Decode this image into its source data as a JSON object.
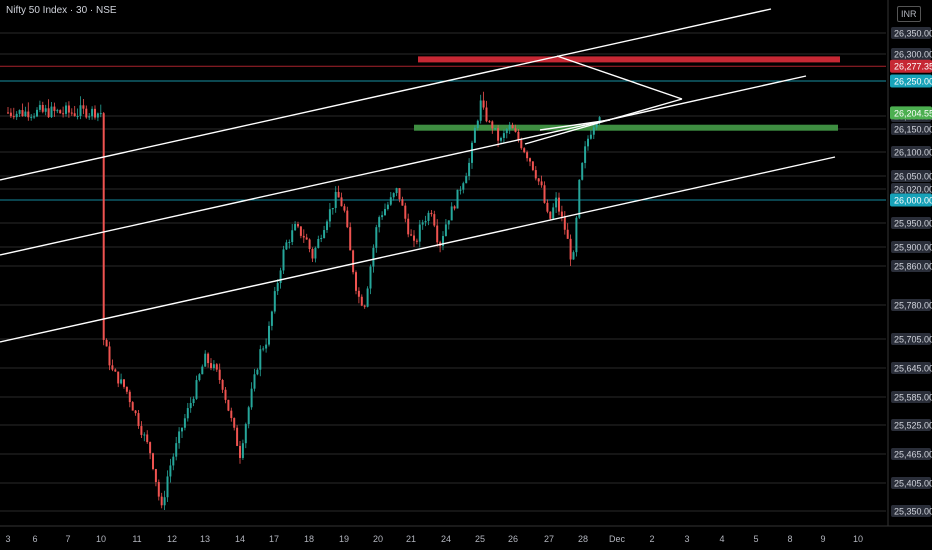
{
  "header": {
    "title": "Nifty 50 Index · 30 · NSE",
    "currency": "INR"
  },
  "colors": {
    "up": "#26a69a",
    "down": "#ef5350",
    "background": "#000000",
    "resistance": "#c62834",
    "support": "#3e8e41",
    "cyan": "#17a2b8",
    "lastPrice": "#4caf50"
  },
  "chart_data": {
    "type": "candlestick",
    "ylim": [
      25320,
      26400
    ],
    "y_ticks": [
      "26,350.00",
      "26,300.00",
      "26,250.00",
      "26,200.00",
      "26,150.00",
      "26,100.00",
      "26,050.00",
      "26,020.00",
      "25,950.00",
      "25,900.00",
      "25,860.00",
      "25,780.00",
      "25,705.00",
      "25,645.00",
      "25,585.00",
      "25,525.00",
      "25,465.00",
      "25,405.00",
      "25,350.00"
    ],
    "x_ticks": [
      "3",
      "6",
      "7",
      "10",
      "11",
      "12",
      "13",
      "14",
      "17",
      "18",
      "19",
      "20",
      "21",
      "24",
      "25",
      "26",
      "27",
      "28",
      "Dec",
      "2",
      "3",
      "4",
      "5",
      "8",
      "9",
      "10"
    ],
    "price_labels": [
      {
        "text": "26,277.35",
        "value": 26277.35,
        "color": "#c62834"
      },
      {
        "text": "26,250.00",
        "value": 26250,
        "color": "#17a2b8"
      },
      {
        "text": "26,204.55",
        "value": 26204.55,
        "color": "#4caf50"
      },
      {
        "text": "26,000.00",
        "value": 26000,
        "color": "#17a2b8"
      }
    ],
    "horizontal_lines": [
      {
        "value": 26277.35,
        "color": "#c62834"
      },
      {
        "value": 26250,
        "color": "#17a2b8"
      },
      {
        "value": 26000,
        "color": "#17a2b8"
      }
    ],
    "zones": [
      {
        "name": "resistance",
        "value": 26290,
        "color": "#c62834"
      },
      {
        "name": "support",
        "value": 26155,
        "color": "#3e8e41"
      }
    ],
    "path_points": [
      [
        3,
        25725
      ],
      [
        3.3,
        25640
      ],
      [
        3.7,
        25600
      ],
      [
        4.1,
        25520
      ],
      [
        4.4,
        25465
      ],
      [
        4.7,
        25350
      ],
      [
        4.9,
        25430
      ],
      [
        5.3,
        25520
      ],
      [
        5.7,
        25600
      ],
      [
        6.0,
        25665
      ],
      [
        6.3,
        25640
      ],
      [
        6.5,
        25610
      ],
      [
        6.8,
        25520
      ],
      [
        7.0,
        25465
      ],
      [
        7.3,
        25580
      ],
      [
        7.6,
        25680
      ],
      [
        7.8,
        25705
      ],
      [
        8.0,
        25790
      ],
      [
        8.3,
        25900
      ],
      [
        8.6,
        25940
      ],
      [
        8.9,
        25920
      ],
      [
        9.1,
        25880
      ],
      [
        9.5,
        25960
      ],
      [
        9.8,
        26010
      ],
      [
        10.0,
        25980
      ],
      [
        10.2,
        25880
      ],
      [
        10.4,
        25800
      ],
      [
        10.6,
        25780
      ],
      [
        10.8,
        25870
      ],
      [
        11.0,
        25960
      ],
      [
        11.3,
        25990
      ],
      [
        11.6,
        26020
      ],
      [
        11.9,
        25940
      ],
      [
        12.1,
        25900
      ],
      [
        12.3,
        25950
      ],
      [
        12.6,
        25980
      ],
      [
        12.8,
        25900
      ],
      [
        13.0,
        25950
      ],
      [
        13.3,
        26000
      ],
      [
        13.7,
        26080
      ],
      [
        14.0,
        26220
      ],
      [
        14.3,
        26170
      ],
      [
        14.6,
        26120
      ],
      [
        14.9,
        26160
      ],
      [
        15.2,
        26120
      ],
      [
        15.5,
        26080
      ],
      [
        15.8,
        26020
      ],
      [
        16.0,
        25950
      ],
      [
        16.2,
        26000
      ],
      [
        16.5,
        25930
      ],
      [
        16.7,
        25860
      ],
      [
        16.9,
        26040
      ],
      [
        17.1,
        26120
      ],
      [
        17.3,
        26160
      ],
      [
        17.6,
        26230
      ],
      [
        17.8,
        26295
      ],
      [
        18.0,
        26220
      ],
      [
        18.2,
        26260
      ],
      [
        18.4,
        26175
      ],
      [
        18.6,
        26240
      ],
      [
        18.8,
        26270
      ],
      [
        19.0,
        26215
      ],
      [
        19.2,
        26250
      ],
      [
        19.4,
        26205
      ]
    ]
  }
}
